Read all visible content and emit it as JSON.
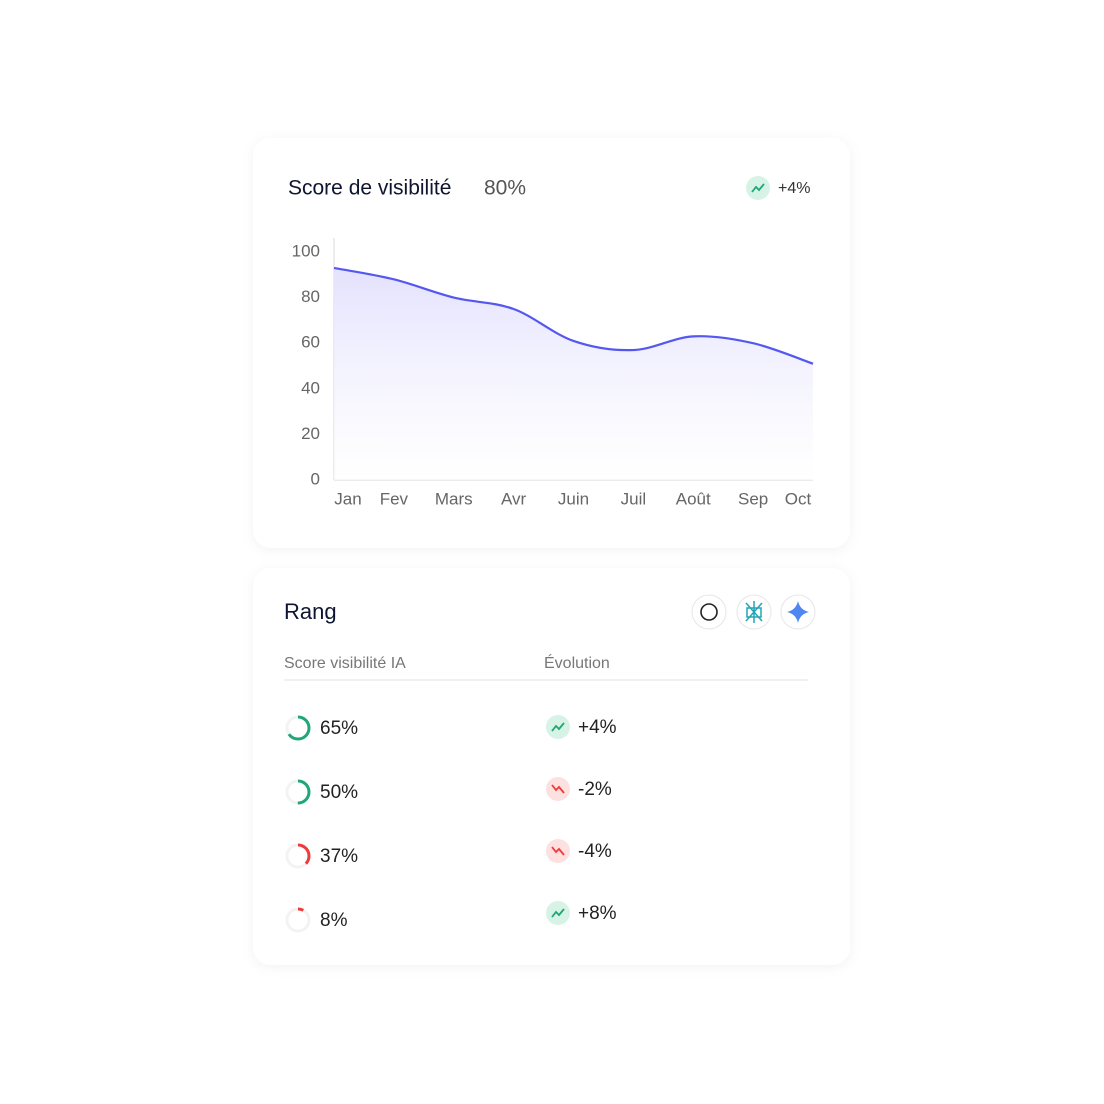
{
  "header": {
    "title": "Score de visibilité",
    "score": "80%",
    "trend": "+4%"
  },
  "chart_data": {
    "type": "line",
    "categories": [
      "Jan",
      "Fev",
      "Mars",
      "Avr",
      "Juin",
      "Juil",
      "Août",
      "Sep",
      "Oct"
    ],
    "values": [
      93,
      88,
      80,
      75,
      61,
      57,
      63,
      60,
      51
    ],
    "color": "#5457f0",
    "ylim": [
      0,
      100
    ],
    "yticks": [
      0,
      20,
      40,
      60,
      80,
      100
    ]
  },
  "rank": {
    "title": "Rang",
    "columns": [
      "Score visibilité IA",
      "Évolution"
    ],
    "values": [
      65,
      50,
      37,
      8
    ],
    "value_labels": [
      "65%",
      "50%",
      "37%",
      "8%"
    ],
    "colors": [
      "#1fa77a",
      "#1fa77a",
      "#ee3b3b",
      "#ee3b3b"
    ],
    "trends": [
      "+4%",
      "-2%",
      "-4%",
      "+8%"
    ],
    "trend_directions": [
      "up",
      "down",
      "down",
      "up"
    ]
  }
}
